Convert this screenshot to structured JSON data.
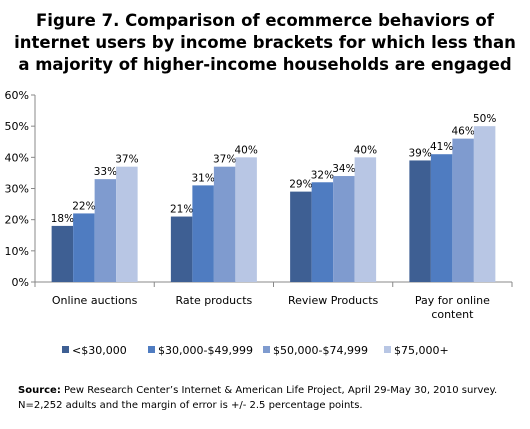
{
  "chart_data": {
    "type": "bar",
    "title_lines": [
      "Figure 7. Comparison of ecommerce behaviors of",
      "internet users by income brackets for which less than",
      "a majority of higher-income households are engaged"
    ],
    "categories": [
      [
        "Online auctions"
      ],
      [
        "Rate products"
      ],
      [
        "Review Products"
      ],
      [
        "Pay for online",
        "content"
      ]
    ],
    "series": [
      {
        "name": "<$30,000",
        "color": "#3e5f93",
        "values": [
          18,
          21,
          29,
          39
        ]
      },
      {
        "name": "$30,000-$49,999",
        "color": "#4f7cc1",
        "values": [
          22,
          31,
          32,
          41
        ]
      },
      {
        "name": "$50,000-$74,999",
        "color": "#7f9bcf",
        "values": [
          33,
          37,
          34,
          46
        ]
      },
      {
        "name": "$75,000+",
        "color": "#b8c6e4",
        "values": [
          37,
          40,
          40,
          50
        ]
      }
    ],
    "value_suffix": "%",
    "yticks": [
      "0%",
      "10%",
      "20%",
      "30%",
      "40%",
      "50%",
      "60%"
    ],
    "ylim": [
      0,
      60
    ],
    "grid": false,
    "legend_position": "bottom"
  },
  "source": {
    "label": "Source:",
    "text": " Pew Research Center’s Internet & American Life Project, April 29-May 30, 2010 survey. N=2,252 adults and the margin of error is +/- 2.5 percentage points."
  }
}
